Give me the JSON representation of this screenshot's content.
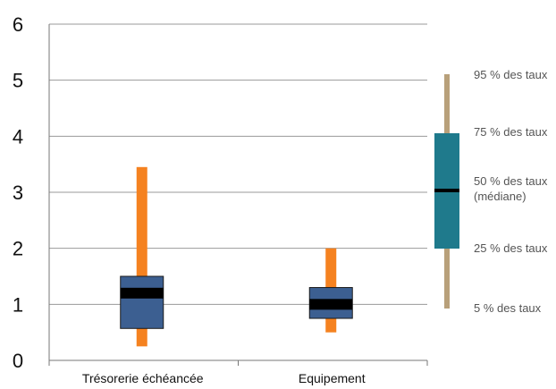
{
  "chart_data": {
    "type": "boxplot",
    "title": "",
    "xlabel": "",
    "ylabel": "",
    "ylim": [
      0,
      6
    ],
    "y_ticks": [
      "0",
      "1",
      "2",
      "3",
      "4",
      "5",
      "6"
    ],
    "grid": true,
    "categories": [
      "Trésorerie échéancée",
      "Equipement"
    ],
    "boxes": [
      {
        "category": "Trésorerie échéancée",
        "p5": 0.25,
        "p25": 0.57,
        "median": 1.2,
        "p75": 1.5,
        "p95": 3.45
      },
      {
        "category": "Equipement",
        "p5": 0.5,
        "p25": 0.75,
        "median": 1.0,
        "p75": 1.3,
        "p95": 2.0
      }
    ],
    "colors": {
      "whisker": "#F58220",
      "box": "#3C5F91",
      "median": "#000000",
      "legend_whisker": "#B8A07A",
      "legend_box": "#1F7A8C"
    },
    "legend": {
      "position": "right",
      "items": [
        {
          "label": "95 % des taux"
        },
        {
          "label": "75 % des taux"
        },
        {
          "label": "50 % des taux",
          "label2": "(médiane)"
        },
        {
          "label": "25 % des taux"
        },
        {
          "label": "5 % des taux"
        }
      ]
    }
  }
}
